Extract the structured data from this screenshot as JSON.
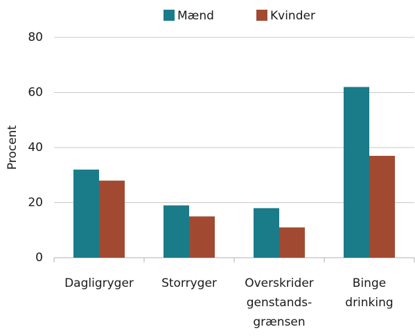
{
  "chart_data": {
    "type": "bar",
    "ylabel": "Procent",
    "categories": [
      "Dagligryger",
      "Storryger",
      "Overskrider\ngenstands-\ngrænsen",
      "Binge\ndrinking"
    ],
    "series": [
      {
        "name": "Mænd",
        "color": "#1a7b89",
        "values": [
          32,
          19,
          18,
          62
        ]
      },
      {
        "name": "Kvinder",
        "color": "#a24a31",
        "values": [
          28,
          15,
          11,
          37
        ]
      }
    ],
    "ylim": [
      0,
      80
    ],
    "yticks": [
      0,
      20,
      40,
      60,
      80
    ],
    "grid": true,
    "legend": "top"
  }
}
